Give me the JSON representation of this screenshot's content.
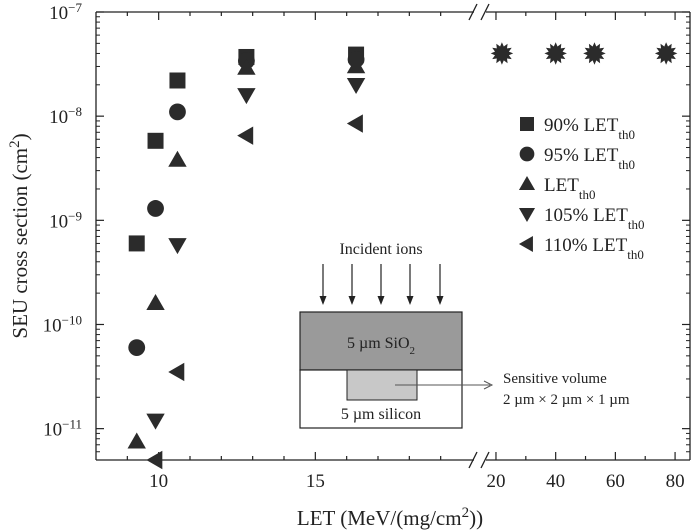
{
  "chart_data": {
    "type": "scatter",
    "title": "",
    "xlabel_html": "LET (MeV/(mg/cm<tspan baseline-shift=\"super\" font-size=\"15\">2</tspan>))",
    "ylabel_html": "SEU cross section (cm<tspan baseline-shift=\"super\" font-size=\"15\">2</tspan>)",
    "y_scale": "log",
    "ylim": [
      5e-12,
      1e-07
    ],
    "y_ticks": [
      {
        "value": 1e-11,
        "label": "10",
        "exp": "−11"
      },
      {
        "value": 1e-10,
        "label": "10",
        "exp": "−10"
      },
      {
        "value": 1e-09,
        "label": "10",
        "exp": "−9"
      },
      {
        "value": 1e-08,
        "label": "10",
        "exp": "−8"
      },
      {
        "value": 1e-07,
        "label": "10",
        "exp": "−7"
      }
    ],
    "x_segments": [
      {
        "name": "left",
        "xlim": [
          8,
          20
        ],
        "ticks": [
          10,
          15
        ]
      },
      {
        "name": "right",
        "xlim": [
          18,
          85
        ],
        "ticks": [
          20,
          40,
          60,
          80
        ]
      }
    ],
    "series": [
      {
        "name": "90% LET",
        "sub": "th0",
        "marker": "square",
        "points": [
          [
            9.3,
            6e-10
          ],
          [
            9.9,
            5.8e-09
          ],
          [
            10.6,
            2.2e-08
          ],
          [
            12.8,
            3.7e-08
          ],
          [
            16.3,
            3.9e-08
          ]
        ]
      },
      {
        "name": "95% LET",
        "sub": "th0",
        "marker": "circle",
        "points": [
          [
            9.3,
            6e-11
          ],
          [
            9.9,
            1.3e-09
          ],
          [
            10.6,
            1.1e-08
          ],
          [
            12.8,
            3.4e-08
          ],
          [
            16.3,
            3.5e-08
          ]
        ]
      },
      {
        "name": "LET",
        "sub": "th0",
        "marker": "triangle-up",
        "points": [
          [
            9.3,
            7.5e-12
          ],
          [
            9.9,
            1.6e-10
          ],
          [
            10.6,
            3.8e-09
          ],
          [
            12.8,
            2.9e-08
          ],
          [
            16.3,
            3e-08
          ]
        ]
      },
      {
        "name": "105% LET",
        "sub": "th0",
        "marker": "triangle-down",
        "points": [
          [
            9.9,
            1.2e-11
          ],
          [
            10.6,
            5.8e-10
          ],
          [
            12.8,
            1.6e-08
          ],
          [
            16.3,
            2e-08
          ]
        ]
      },
      {
        "name": "110% LET",
        "sub": "th0",
        "marker": "triangle-left",
        "points": [
          [
            9.9,
            5e-12
          ],
          [
            10.6,
            3.5e-11
          ],
          [
            12.8,
            6.5e-09
          ],
          [
            16.3,
            8.5e-09
          ]
        ]
      }
    ],
    "saturated_points": {
      "marker": "star-burst",
      "x": [
        22,
        40,
        53,
        77
      ],
      "y": 4e-08
    },
    "legend_position": "top-right",
    "inset": {
      "title": "Incident ions",
      "layer_top": "5 µm SiO",
      "layer_top_sub": "2",
      "layer_bottom": "5 µm silicon",
      "callout_line1": "Sensitive volume",
      "callout_line2": "2 µm × 2 µm × 1 µm"
    }
  },
  "colors": {
    "marker": "#2b2b2b",
    "oxide_fill": "#9a9a9a",
    "sensitive_fill": "#c8c8c8",
    "axis": "#222222"
  }
}
